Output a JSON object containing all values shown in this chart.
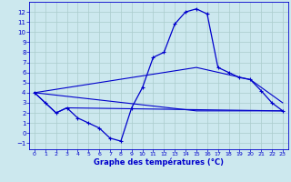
{
  "xlabel": "Graphe des températures (°C)",
  "background_color": "#cce8ee",
  "grid_color": "#aacccc",
  "line_color": "#0000cc",
  "xlim": [
    -0.5,
    23.5
  ],
  "ylim": [
    -1.6,
    13.0
  ],
  "xticks": [
    0,
    1,
    2,
    3,
    4,
    5,
    6,
    7,
    8,
    9,
    10,
    11,
    12,
    13,
    14,
    15,
    16,
    17,
    18,
    19,
    20,
    21,
    22,
    23
  ],
  "yticks": [
    -1,
    0,
    1,
    2,
    3,
    4,
    5,
    6,
    7,
    8,
    9,
    10,
    11,
    12
  ],
  "main_curve": {
    "x": [
      0,
      1,
      2,
      3,
      4,
      5,
      6,
      7,
      8,
      9,
      10,
      11,
      12,
      13,
      14,
      15,
      16,
      17,
      18,
      19,
      20,
      21,
      22,
      23
    ],
    "y": [
      4.0,
      3.0,
      2.0,
      2.5,
      1.5,
      1.0,
      0.5,
      -0.5,
      -0.8,
      2.5,
      4.5,
      7.5,
      8.0,
      10.8,
      12.0,
      12.3,
      11.8,
      6.5,
      6.0,
      5.5,
      5.3,
      4.2,
      3.0,
      2.2
    ]
  },
  "line_straight1": {
    "x": [
      0,
      1,
      2,
      3,
      23
    ],
    "y": [
      4.0,
      3.0,
      2.0,
      2.5,
      2.2
    ]
  },
  "line_envelope_high": {
    "x": [
      0,
      15,
      20,
      23
    ],
    "y": [
      4.0,
      6.5,
      5.3,
      3.0
    ]
  },
  "line_envelope_low": {
    "x": [
      0,
      15,
      23
    ],
    "y": [
      4.0,
      2.2,
      2.2
    ]
  }
}
